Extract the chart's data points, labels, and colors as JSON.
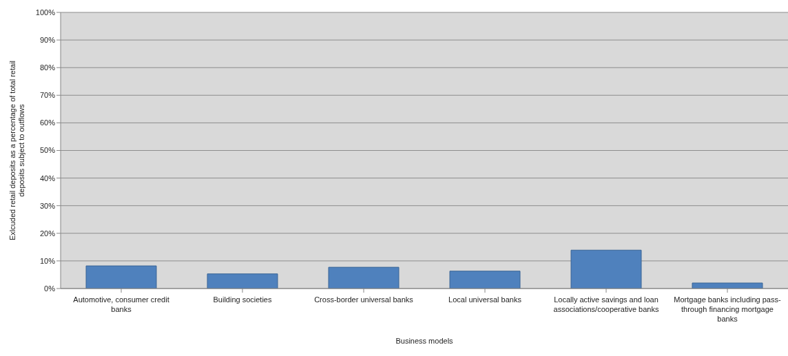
{
  "chart_data": {
    "type": "bar",
    "xlabel": "Business models",
    "ylabel": "Exlcuded retail deposits as a percentage of total retail deposits subject to outflows",
    "categories": [
      "Automotive, consumer credit banks",
      "Building societies",
      "Cross-border universal banks",
      "Local universal banks",
      "Locally active savings and loan associations/cooperative banks",
      "Mortgage banks including pass-through financing mortgage banks"
    ],
    "values": [
      8.2,
      5.3,
      7.7,
      6.3,
      13.9,
      2.0
    ],
    "color": "#4f81bd",
    "ylim": [
      0,
      100
    ],
    "yticks": [
      {
        "value": 0,
        "label": "0%"
      },
      {
        "value": 10,
        "label": "10%"
      },
      {
        "value": 20,
        "label": "20%"
      },
      {
        "value": 30,
        "label": "30%"
      },
      {
        "value": 40,
        "label": "40%"
      },
      {
        "value": 50,
        "label": "50%"
      },
      {
        "value": 60,
        "label": "60%"
      },
      {
        "value": 70,
        "label": "70%"
      },
      {
        "value": 80,
        "label": "80%"
      },
      {
        "value": 90,
        "label": "90%"
      },
      {
        "value": 100,
        "label": "100%"
      }
    ],
    "grid": "y"
  }
}
